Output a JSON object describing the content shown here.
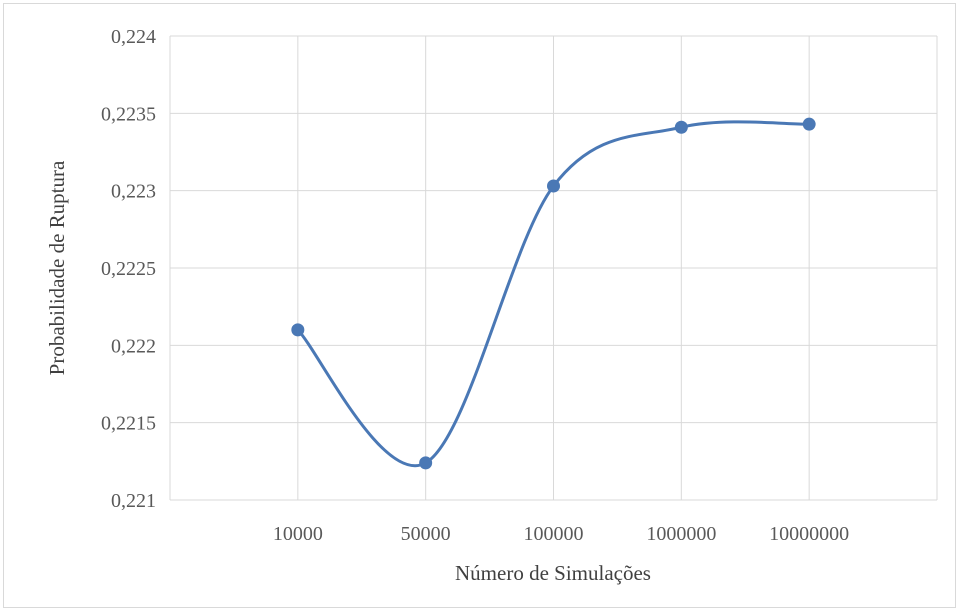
{
  "chart_data": {
    "type": "line",
    "title": "",
    "xlabel": "Número de Simulações",
    "ylabel": "Probabilidade de Ruptura",
    "categories": [
      "10000",
      "50000",
      "100000",
      "1000000",
      "10000000"
    ],
    "y_tick_labels": [
      "0,221",
      "0,2215",
      "0,222",
      "0,2225",
      "0,223",
      "0,2235",
      "0,224"
    ],
    "ylim": [
      0.221,
      0.224
    ],
    "grid": true,
    "legend": "none",
    "line_style": "smooth",
    "series": [
      {
        "values": [
          0.2221,
          0.22124,
          0.22303,
          0.22341,
          0.22343
        ]
      }
    ],
    "colors": {
      "series": "#4a78b5",
      "grid": "#d9d9d9",
      "frame": "#d9d9d9"
    }
  }
}
